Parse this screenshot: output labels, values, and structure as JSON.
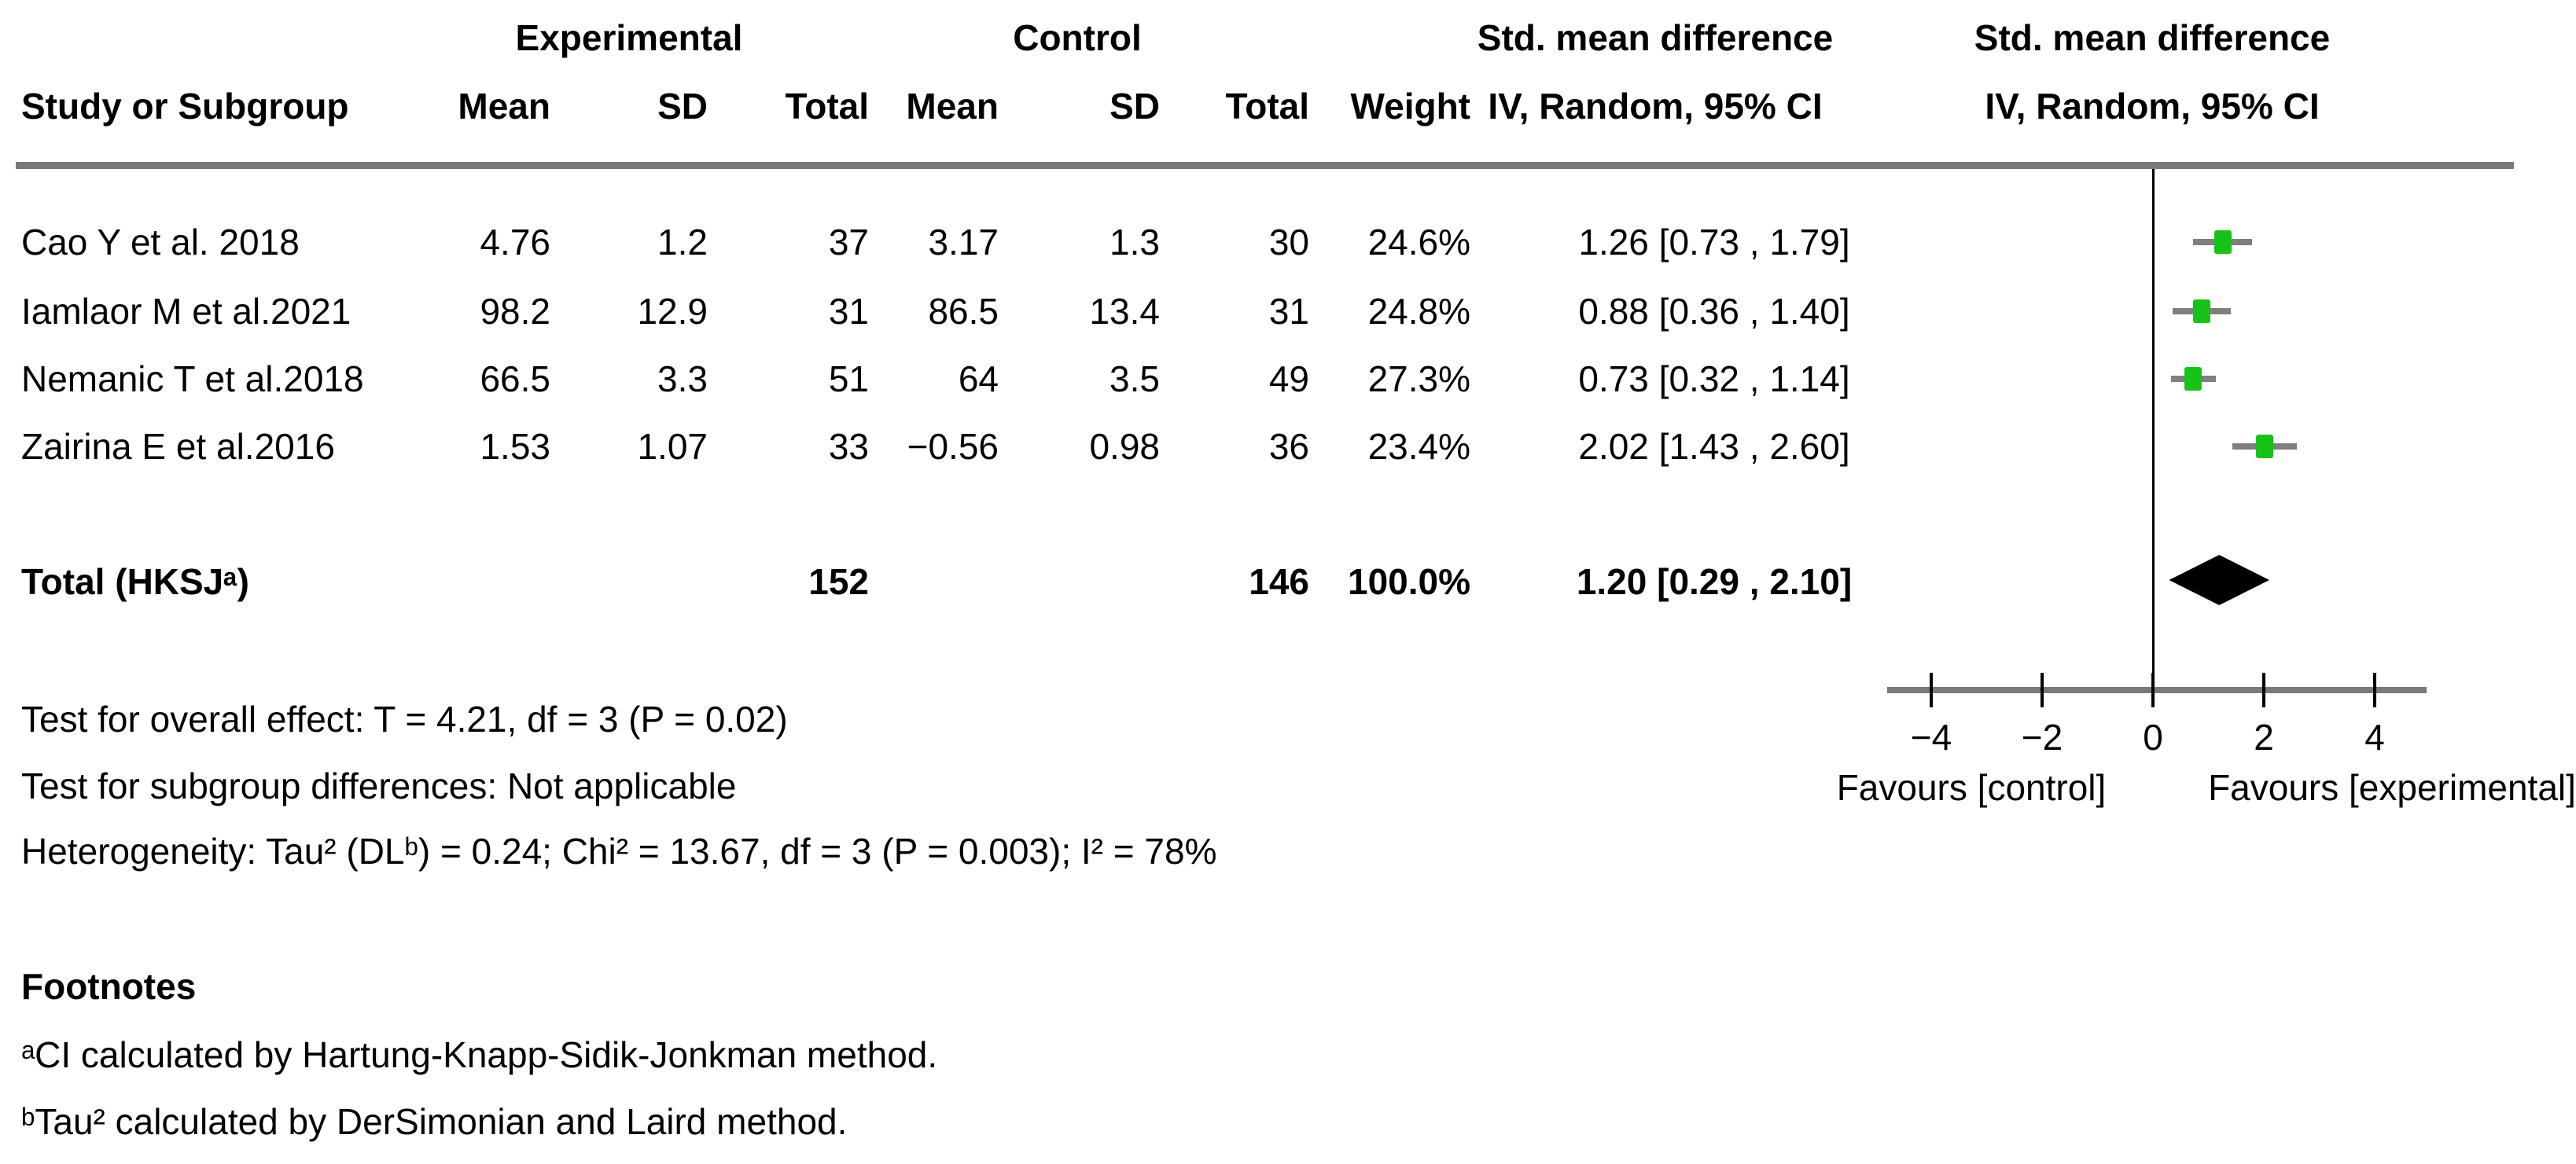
{
  "header": {
    "group_experimental": "Experimental",
    "group_control": "Control",
    "smd_line1": "Std. mean difference",
    "smd_line2": "IV, Random, 95% CI",
    "col_study": "Study or Subgroup",
    "col_mean": "Mean",
    "col_sd": "SD",
    "col_total": "Total",
    "col_weight": "Weight"
  },
  "table": {
    "rows": [
      {
        "study": "Cao Y et al. 2018",
        "e_mean": "4.76",
        "e_sd": "1.2",
        "e_total": "37",
        "c_mean": "3.17",
        "c_sd": "1.3",
        "c_total": "30",
        "weight": "24.6%",
        "ci": "1.26 [0.73 , 1.79]"
      },
      {
        "study": "Iamlaor M et al.2021",
        "e_mean": "98.2",
        "e_sd": "12.9",
        "e_total": "31",
        "c_mean": "86.5",
        "c_sd": "13.4",
        "c_total": "31",
        "weight": "24.8%",
        "ci": "0.88 [0.36 , 1.40]"
      },
      {
        "study": "Nemanic T et al.2018",
        "e_mean": "66.5",
        "e_sd": "3.3",
        "e_total": "51",
        "c_mean": "64",
        "c_sd": "3.5",
        "c_total": "49",
        "weight": "27.3%",
        "ci": "0.73 [0.32 , 1.14]"
      },
      {
        "study": "Zairina E et al.2016",
        "e_mean": "1.53",
        "e_sd": "1.07",
        "e_total": "33",
        "c_mean": "−0.56",
        "c_sd": "0.98",
        "c_total": "36",
        "weight": "23.4%",
        "ci": "2.02 [1.43 , 2.60]"
      }
    ],
    "total_row": {
      "label": "Total (HKSJᵃ)",
      "e_total": "152",
      "c_total": "146",
      "weight": "100.0%",
      "ci": "1.20 [0.29 , 2.10]"
    }
  },
  "stats": {
    "overall_effect": "Test for overall effect: T = 4.21, df = 3 (P = 0.02)",
    "subgroup_differences": "Test for subgroup differences: Not applicable",
    "heterogeneity": "Heterogeneity: Tau² (DLᵇ) = 0.24; Chi² = 13.67, df = 3 (P = 0.003); I² = 78%"
  },
  "footnotes": {
    "title": "Footnotes",
    "a": "ᵃCI calculated by Hartung-Knapp-Sidik-Jonkman method.",
    "b": "ᵇTau² calculated by DerSimonian and Laird method."
  },
  "chart_data": {
    "type": "forest",
    "effect_measure": "Std. mean difference (IV, Random, 95% CI)",
    "x_axis": {
      "ticks": [
        -4,
        -2,
        0,
        2,
        4
      ],
      "tick_labels": [
        "−4",
        "−2",
        "0",
        "2",
        "4"
      ],
      "xlim": [
        -4.8,
        4.9
      ],
      "favours_left": "Favours [control]",
      "favours_right": "Favours [experimental]"
    },
    "studies": [
      {
        "name": "Cao Y et al. 2018",
        "smd": 1.26,
        "ci_low": 0.73,
        "ci_high": 1.79,
        "weight_pct": 24.6
      },
      {
        "name": "Iamlaor M et al.2021",
        "smd": 0.88,
        "ci_low": 0.36,
        "ci_high": 1.4,
        "weight_pct": 24.8
      },
      {
        "name": "Nemanic T et al.2018",
        "smd": 0.73,
        "ci_low": 0.32,
        "ci_high": 1.14,
        "weight_pct": 27.3
      },
      {
        "name": "Zairina E et al.2016",
        "smd": 2.02,
        "ci_low": 1.43,
        "ci_high": 2.6,
        "weight_pct": 23.4
      }
    ],
    "total": {
      "label": "Total (HKSJᵃ)",
      "smd": 1.2,
      "ci_low": 0.29,
      "ci_high": 2.1,
      "weight_pct": 100.0
    }
  },
  "colors": {
    "marker_green": "#17c317",
    "rule_gray": "#7a7a7a",
    "ci_gray": "#7f7f7f",
    "diamond_black": "#000000"
  }
}
